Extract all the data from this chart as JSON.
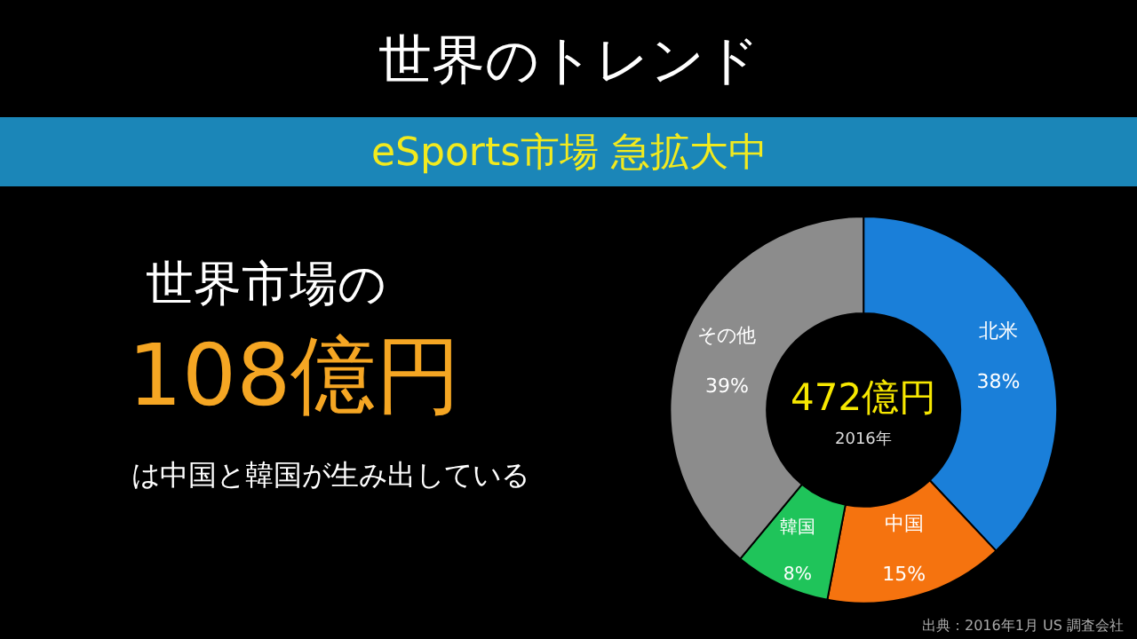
{
  "chart_data": {
    "type": "donut",
    "title": "世界のトレンド",
    "subtitle": "eSports市場 急拡大中",
    "categories": [
      "北米",
      "中国",
      "韓国",
      "その他"
    ],
    "values": [
      38,
      15,
      8,
      39
    ],
    "value_labels": [
      "38%",
      "15%",
      "8%",
      "39%"
    ],
    "colors": [
      "#1a7fd9",
      "#f5730f",
      "#1fc45a",
      "#8c8c8c"
    ],
    "legend": false,
    "annotations": [
      "世界市場の",
      "108億円",
      "は中国と韓国が生み出している",
      "472億円",
      "2016年",
      "出典：2016年1月 US 調査会社"
    ]
  }
}
